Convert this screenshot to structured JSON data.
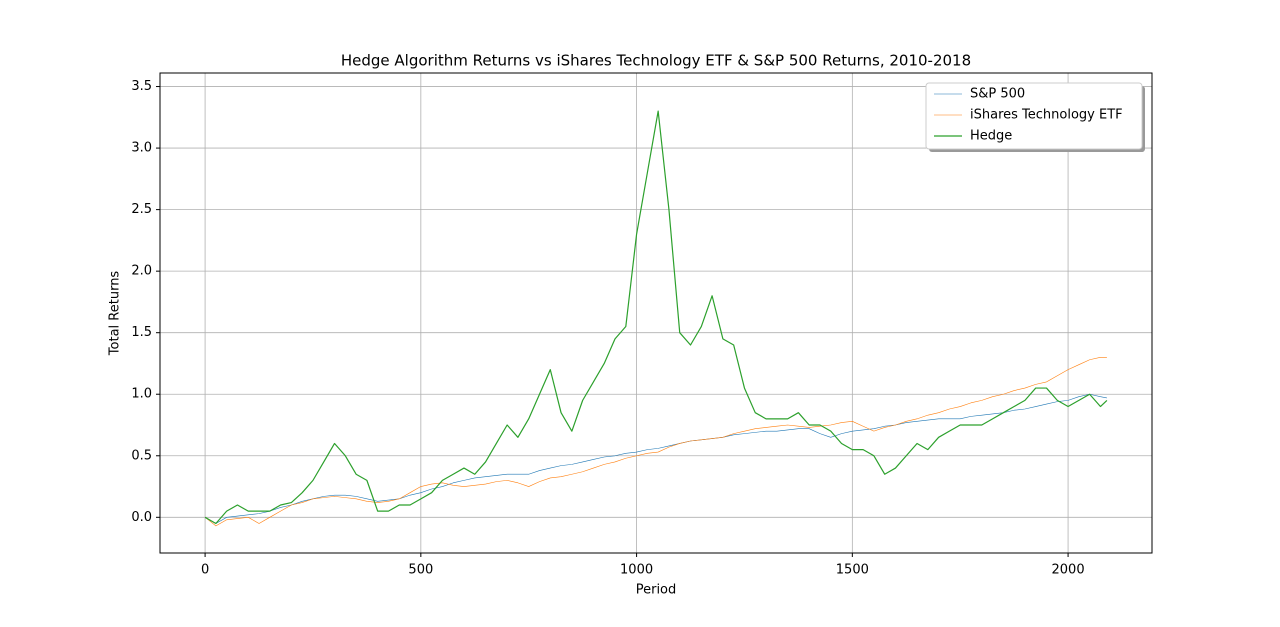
{
  "chart_data": {
    "type": "line",
    "title": "Hedge Algorithm Returns vs iShares Technology ETF & S&P 500 Returns, 2010-2018",
    "x_label": "Period",
    "y_label": "Total Returns",
    "x": [
      0,
      25,
      50,
      75,
      100,
      125,
      150,
      175,
      200,
      225,
      250,
      275,
      300,
      325,
      350,
      375,
      400,
      425,
      450,
      475,
      500,
      525,
      550,
      575,
      600,
      625,
      650,
      675,
      700,
      725,
      750,
      775,
      800,
      825,
      850,
      875,
      900,
      925,
      950,
      975,
      1000,
      1025,
      1050,
      1075,
      1100,
      1125,
      1150,
      1175,
      1200,
      1225,
      1250,
      1275,
      1300,
      1325,
      1350,
      1375,
      1400,
      1425,
      1450,
      1475,
      1500,
      1525,
      1550,
      1575,
      1600,
      1625,
      1650,
      1675,
      1700,
      1725,
      1750,
      1775,
      1800,
      1825,
      1850,
      1875,
      1900,
      1925,
      1950,
      1975,
      2000,
      2025,
      2050,
      2075,
      2090
    ],
    "series": [
      {
        "name": "S&P 500",
        "color": "#1f77b4",
        "width": 0.6,
        "values": [
          0,
          -0.05,
          0,
          0.01,
          0.02,
          0.03,
          0.05,
          0.08,
          0.1,
          0.13,
          0.15,
          0.17,
          0.18,
          0.18,
          0.17,
          0.15,
          0.13,
          0.14,
          0.15,
          0.18,
          0.2,
          0.23,
          0.25,
          0.28,
          0.3,
          0.32,
          0.33,
          0.34,
          0.35,
          0.35,
          0.35,
          0.38,
          0.4,
          0.42,
          0.43,
          0.45,
          0.47,
          0.49,
          0.5,
          0.52,
          0.53,
          0.55,
          0.56,
          0.58,
          0.6,
          0.62,
          0.63,
          0.64,
          0.65,
          0.67,
          0.68,
          0.69,
          0.7,
          0.7,
          0.71,
          0.72,
          0.72,
          0.68,
          0.65,
          0.68,
          0.7,
          0.71,
          0.72,
          0.74,
          0.75,
          0.77,
          0.78,
          0.79,
          0.8,
          0.8,
          0.8,
          0.82,
          0.83,
          0.84,
          0.85,
          0.87,
          0.88,
          0.9,
          0.92,
          0.94,
          0.95,
          0.98,
          1.0,
          0.98,
          0.97
        ]
      },
      {
        "name": "iShares Technology ETF",
        "color": "#ff7f0e",
        "width": 0.6,
        "values": [
          0,
          -0.07,
          -0.02,
          -0.01,
          0,
          -0.05,
          0,
          0.05,
          0.1,
          0.12,
          0.15,
          0.16,
          0.17,
          0.16,
          0.15,
          0.13,
          0.12,
          0.13,
          0.15,
          0.2,
          0.25,
          0.27,
          0.28,
          0.26,
          0.25,
          0.26,
          0.27,
          0.29,
          0.3,
          0.28,
          0.25,
          0.29,
          0.32,
          0.33,
          0.35,
          0.37,
          0.4,
          0.43,
          0.45,
          0.48,
          0.5,
          0.52,
          0.53,
          0.57,
          0.6,
          0.62,
          0.63,
          0.64,
          0.65,
          0.68,
          0.7,
          0.72,
          0.73,
          0.74,
          0.75,
          0.74,
          0.73,
          0.74,
          0.75,
          0.77,
          0.78,
          0.74,
          0.7,
          0.73,
          0.75,
          0.78,
          0.8,
          0.83,
          0.85,
          0.88,
          0.9,
          0.93,
          0.95,
          0.98,
          1.0,
          1.03,
          1.05,
          1.08,
          1.1,
          1.15,
          1.2,
          1.24,
          1.28,
          1.3,
          1.3
        ]
      },
      {
        "name": "Hedge",
        "color": "#2ca02c",
        "width": 1.2,
        "values": [
          0,
          -0.05,
          0.05,
          0.1,
          0.05,
          0.05,
          0.05,
          0.1,
          0.12,
          0.2,
          0.3,
          0.45,
          0.6,
          0.5,
          0.35,
          0.3,
          0.05,
          0.05,
          0.1,
          0.1,
          0.15,
          0.2,
          0.3,
          0.35,
          0.4,
          0.35,
          0.45,
          0.6,
          0.75,
          0.65,
          0.8,
          1.0,
          1.2,
          0.85,
          0.7,
          0.95,
          1.1,
          1.25,
          1.45,
          1.55,
          2.3,
          2.8,
          3.3,
          2.5,
          1.5,
          1.4,
          1.55,
          1.8,
          1.45,
          1.4,
          1.05,
          0.85,
          0.8,
          0.8,
          0.8,
          0.85,
          0.75,
          0.75,
          0.7,
          0.6,
          0.55,
          0.55,
          0.5,
          0.35,
          0.4,
          0.5,
          0.6,
          0.55,
          0.65,
          0.7,
          0.75,
          0.75,
          0.75,
          0.8,
          0.85,
          0.9,
          0.95,
          1.05,
          1.05,
          0.95,
          0.9,
          0.95,
          1.0,
          0.9,
          0.95
        ]
      }
    ],
    "xlim": [
      -104.5,
      2194.5
    ],
    "ylim": [
      -0.29,
      3.61
    ],
    "xticks": [
      0,
      500,
      1000,
      1500,
      2000
    ],
    "yticks": [
      {
        "value": 0,
        "label": "0.0"
      },
      0.5,
      {
        "value": 1,
        "label": "1.0"
      },
      1.5,
      {
        "value": 2,
        "label": "2.0"
      },
      2.5,
      {
        "value": 3,
        "label": "3.0"
      },
      3.5
    ],
    "grid": true,
    "legend": "upper right"
  }
}
